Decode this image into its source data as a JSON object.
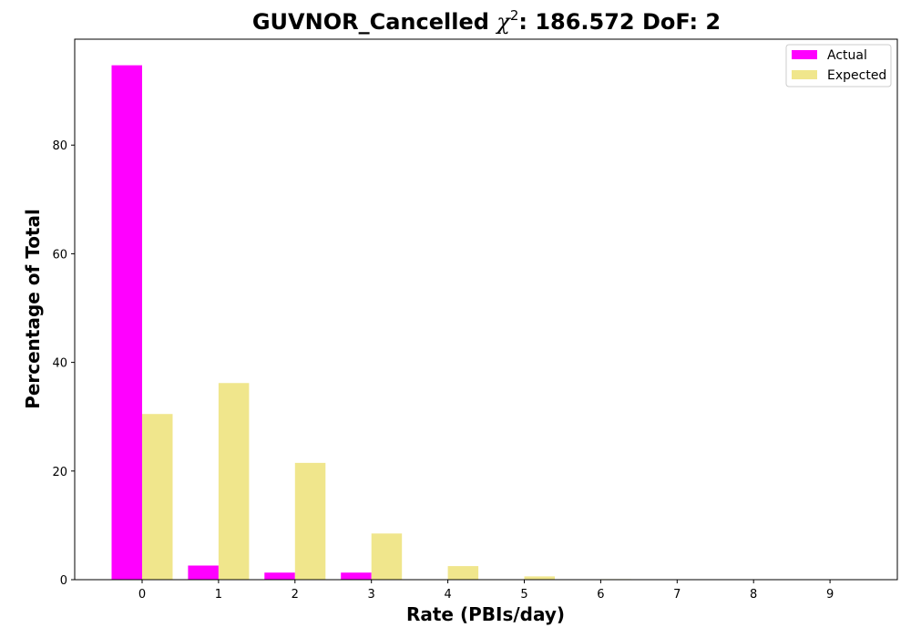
{
  "chart_data": {
    "type": "bar",
    "title_main": "GUVNOR_Cancelled ",
    "title_chi": "χ",
    "title_sup": "2",
    "title_rest": ": 186.572 DoF: 2",
    "xlabel": "Rate (PBIs/day)",
    "ylabel": "Percentage of Total",
    "categories": [
      "0",
      "1",
      "2",
      "3",
      "4",
      "5",
      "6",
      "7",
      "8",
      "9"
    ],
    "series": [
      {
        "name": "Actual",
        "color": "#ff00ff",
        "values": [
          94.7,
          2.6,
          1.3,
          1.3,
          0,
          0,
          0,
          0,
          0,
          0
        ]
      },
      {
        "name": "Expected",
        "color": "#f0e68c",
        "values": [
          30.5,
          36.2,
          21.5,
          8.5,
          2.5,
          0.6,
          0.1,
          0.02,
          0,
          0
        ]
      }
    ],
    "ylim": [
      0,
      99.5
    ],
    "yticks": [
      0,
      20,
      40,
      60,
      80
    ],
    "grid": false,
    "legend_position": "top-right"
  }
}
